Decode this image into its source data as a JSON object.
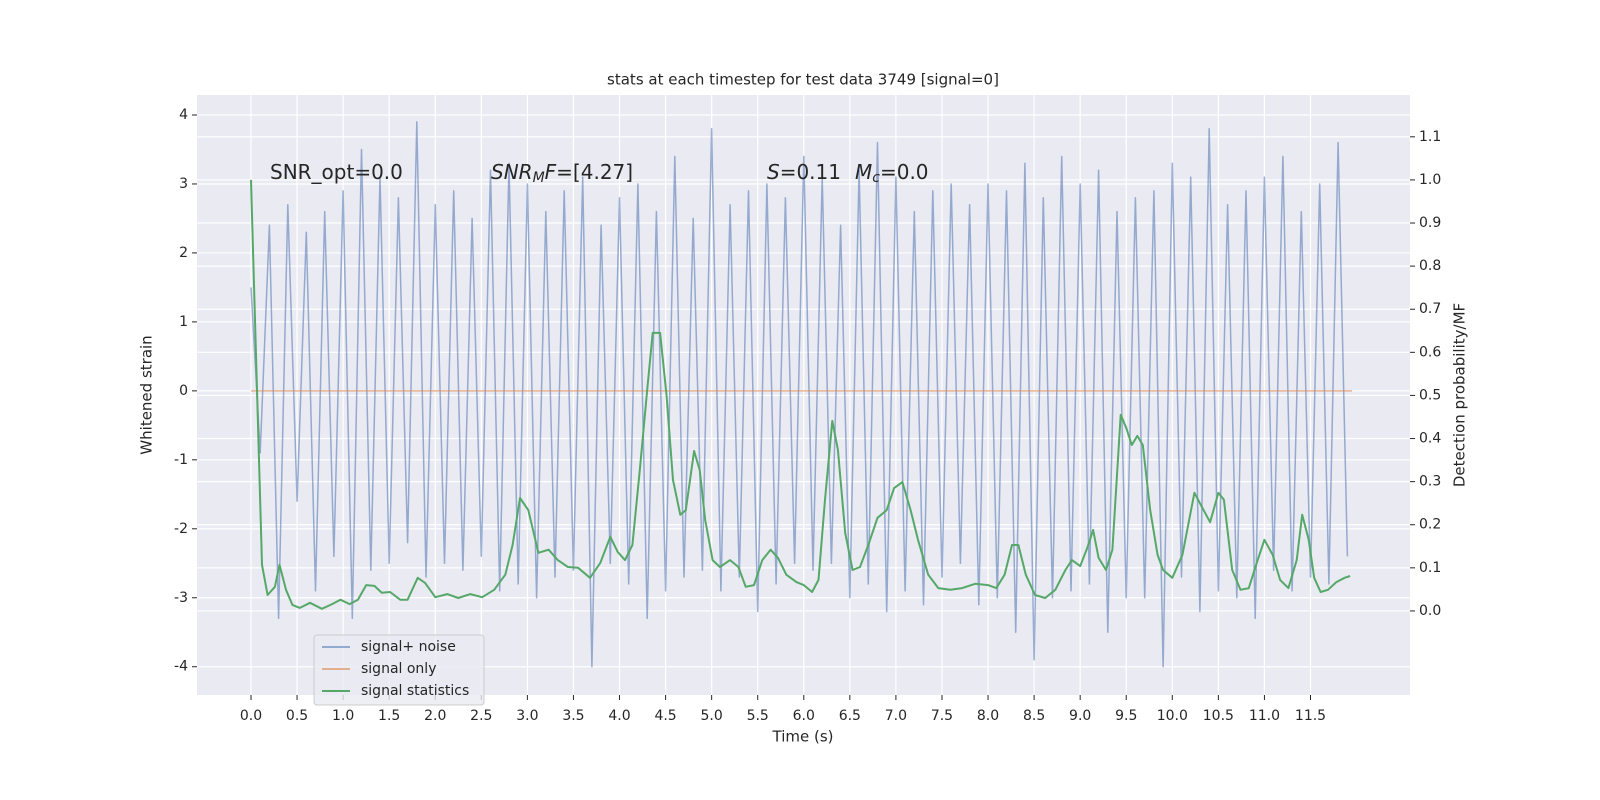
{
  "chart_data": {
    "type": "line",
    "title": "stats at each timestep for test data 3749 [signal=0]",
    "x_label": "Time (s)",
    "y_label": "Whitened strain",
    "y2_label": "Detection probability/MF",
    "xlim": [
      -0.586,
      12.58
    ],
    "ylim": [
      -4.41,
      4.29
    ],
    "y2lim": [
      -0.195,
      1.197
    ],
    "xticks": [
      {
        "value": 0,
        "label": "0.0"
      },
      {
        "value": 0.5,
        "label": "0.5"
      },
      {
        "value": 1,
        "label": "1.0"
      },
      {
        "value": 1.5,
        "label": "1.5"
      },
      {
        "value": 2,
        "label": "2.0"
      },
      {
        "value": 2.5,
        "label": "2.5"
      },
      {
        "value": 3,
        "label": "3.0"
      },
      {
        "value": 3.5,
        "label": "3.5"
      },
      {
        "value": 4,
        "label": "4.0"
      },
      {
        "value": 4.5,
        "label": "4.5"
      },
      {
        "value": 5,
        "label": "5.0"
      },
      {
        "value": 5.5,
        "label": "5.5"
      },
      {
        "value": 6,
        "label": "6.0"
      },
      {
        "value": 6.5,
        "label": "6.5"
      },
      {
        "value": 7,
        "label": "7.0"
      },
      {
        "value": 7.5,
        "label": "7.5"
      },
      {
        "value": 8,
        "label": "8.0"
      },
      {
        "value": 8.5,
        "label": "8.5"
      },
      {
        "value": 9,
        "label": "9.0"
      },
      {
        "value": 9.5,
        "label": "9.5"
      },
      {
        "value": 10,
        "label": "10.0"
      },
      {
        "value": 10.5,
        "label": "10.5"
      },
      {
        "value": 11,
        "label": "11.0"
      },
      {
        "value": 11.5,
        "label": "11.5"
      }
    ],
    "yticks": [
      -4,
      -3,
      -2,
      -1,
      0,
      1,
      2,
      3,
      4
    ],
    "y2ticks": [
      {
        "value": 0,
        "label": "0.0"
      },
      {
        "value": 0.1,
        "label": "0.1"
      },
      {
        "value": 0.2,
        "label": "0.2"
      },
      {
        "value": 0.3,
        "label": "0.3"
      },
      {
        "value": 0.4,
        "label": "0.4"
      },
      {
        "value": 0.5,
        "label": "0.5"
      },
      {
        "value": 0.6,
        "label": "0.6"
      },
      {
        "value": 0.7,
        "label": "0.7"
      },
      {
        "value": 0.8,
        "label": "0.8"
      },
      {
        "value": 0.9,
        "label": "0.9"
      },
      {
        "value": 1,
        "label": "1.0"
      },
      {
        "value": 1.1,
        "label": "1.1"
      }
    ],
    "grid": true,
    "legend": "lower left",
    "annotations": [
      [
        {
          "text": "SNR_opt=0.0",
          "style": "normal"
        }
      ],
      [
        {
          "text": "SNR",
          "style": "italic"
        },
        {
          "text": "M",
          "style": "sub"
        },
        {
          "text": "F",
          "style": "italic"
        },
        {
          "text": "=[4.27]",
          "style": "normal"
        }
      ],
      [
        {
          "text": "S",
          "style": "italic"
        },
        {
          "text": "=0.11",
          "style": "normal"
        },
        {
          "text": "M",
          "style": "italic-gap"
        },
        {
          "text": "c",
          "style": "sub"
        },
        {
          "text": "=0.0",
          "style": "normal"
        }
      ]
    ],
    "series": [
      {
        "name": "signal+ noise",
        "color": "#4c72b0",
        "opacity": 0.55,
        "x": [
          0,
          0.1,
          0.2,
          0.3,
          0.4,
          0.5,
          0.6,
          0.7,
          0.8,
          0.9,
          1,
          1.1,
          1.2,
          1.3,
          1.4,
          1.5,
          1.6,
          1.7,
          1.8,
          1.9,
          2,
          2.1,
          2.2,
          2.3,
          2.4,
          2.5,
          2.6,
          2.7,
          2.8,
          2.9,
          3,
          3.1,
          3.2,
          3.3,
          3.4,
          3.5,
          3.6,
          3.7,
          3.8,
          3.9,
          4,
          4.1,
          4.2,
          4.3,
          4.4,
          4.5,
          4.6,
          4.7,
          4.8,
          4.9,
          5,
          5.1,
          5.2,
          5.3,
          5.4,
          5.5,
          5.6,
          5.7,
          5.8,
          5.9,
          6,
          6.1,
          6.2,
          6.3,
          6.4,
          6.5,
          6.6,
          6.7,
          6.8,
          6.9,
          7,
          7.1,
          7.2,
          7.3,
          7.4,
          7.5,
          7.6,
          7.7,
          7.8,
          7.9,
          8,
          8.1,
          8.2,
          8.3,
          8.4,
          8.5,
          8.6,
          8.7,
          8.8,
          8.9,
          9,
          9.1,
          9.2,
          9.3,
          9.4,
          9.5,
          9.6,
          9.7,
          9.8,
          9.9,
          10,
          10.1,
          10.2,
          10.3,
          10.4,
          10.5,
          10.6,
          10.7,
          10.8,
          10.9,
          11,
          11.1,
          11.2,
          11.3,
          11.4,
          11.5,
          11.6,
          11.7,
          11.8,
          11.9
        ],
        "values": [
          1.5,
          -0.9,
          2.4,
          -3.3,
          2.7,
          -1.6,
          2.3,
          -2.9,
          2.6,
          -2.4,
          2.9,
          -3.3,
          3.5,
          -2.6,
          3.1,
          -2.5,
          2.8,
          -2.2,
          3.9,
          -2.7,
          2.7,
          -2.5,
          2.9,
          -2.6,
          2.5,
          -2.4,
          3.2,
          -2.9,
          3.3,
          -2.8,
          3.0,
          -3.0,
          2.6,
          -2.7,
          2.9,
          -2.6,
          3.1,
          -4.0,
          2.4,
          -2.5,
          2.8,
          -2.8,
          3.0,
          -3.3,
          2.6,
          -2.9,
          3.4,
          -2.7,
          2.5,
          -2.6,
          3.8,
          -2.9,
          2.7,
          -2.7,
          2.9,
          -3.2,
          3.0,
          -2.8,
          2.8,
          -2.5,
          3.4,
          -2.6,
          3.1,
          -2.5,
          2.4,
          -3.0,
          3.2,
          -2.8,
          3.6,
          -3.2,
          3.1,
          -2.9,
          2.6,
          -3.1,
          2.9,
          -2.7,
          3.0,
          -2.5,
          2.7,
          -3.1,
          3.0,
          -3.0,
          2.9,
          -3.5,
          3.3,
          -3.9,
          2.8,
          -3.0,
          3.4,
          -2.9,
          3.0,
          -2.8,
          3.2,
          -3.5,
          2.6,
          -3.0,
          2.8,
          -3.0,
          2.9,
          -4.0,
          3.3,
          -2.7,
          3.1,
          -3.2,
          3.8,
          -2.9,
          2.7,
          -3.0,
          2.9,
          -3.3,
          3.1,
          -2.6,
          3.4,
          -2.9,
          2.6,
          -2.7,
          3.0,
          -2.8,
          3.6,
          -2.4
        ]
      },
      {
        "name": "signal only",
        "color": "#dd8452",
        "opacity": 0.6,
        "x": [
          0,
          11.95
        ],
        "values": [
          0,
          0
        ]
      },
      {
        "name": "signal statistics",
        "color": "#55a868",
        "opacity": 1,
        "axis": "y2",
        "x": [
          0,
          0.12,
          0.18,
          0.26,
          0.31,
          0.38,
          0.45,
          0.53,
          0.64,
          0.77,
          0.88,
          0.97,
          1.07,
          1.16,
          1.25,
          1.34,
          1.42,
          1.51,
          1.62,
          1.7,
          1.81,
          1.89,
          2,
          2.13,
          2.25,
          2.38,
          2.51,
          2.64,
          2.76,
          2.84,
          2.92,
          3.01,
          3.12,
          3.23,
          3.33,
          3.44,
          3.55,
          3.68,
          3.79,
          3.9,
          3.98,
          4.06,
          4.14,
          4.22,
          4.3,
          4.36,
          4.44,
          4.51,
          4.58,
          4.66,
          4.72,
          4.81,
          4.87,
          4.93,
          5.01,
          5.09,
          5.2,
          5.29,
          5.37,
          5.46,
          5.55,
          5.64,
          5.72,
          5.81,
          5.92,
          6,
          6.09,
          6.16,
          6.23,
          6.31,
          6.37,
          6.45,
          6.53,
          6.61,
          6.7,
          6.8,
          6.9,
          6.98,
          7.07,
          7.16,
          7.24,
          7.35,
          7.46,
          7.59,
          7.72,
          7.86,
          8,
          8.09,
          8.18,
          8.26,
          8.33,
          8.41,
          8.51,
          8.62,
          8.73,
          8.84,
          8.91,
          9,
          9.08,
          9.14,
          9.2,
          9.28,
          9.35,
          9.44,
          9.5,
          9.56,
          9.62,
          9.68,
          9.76,
          9.84,
          9.9,
          10,
          10.11,
          10.24,
          10.35,
          10.41,
          10.5,
          10.56,
          10.65,
          10.74,
          10.83,
          10.91,
          11,
          11.09,
          11.17,
          11.26,
          11.35,
          11.41,
          11.48,
          11.54,
          11.61,
          11.69,
          11.78,
          11.87,
          11.93
        ],
        "values": [
          1.0,
          0.107,
          0.037,
          0.056,
          0.107,
          0.049,
          0.014,
          0.007,
          0.019,
          0.005,
          0.016,
          0.026,
          0.016,
          0.026,
          0.06,
          0.058,
          0.042,
          0.044,
          0.026,
          0.026,
          0.077,
          0.065,
          0.032,
          0.039,
          0.03,
          0.039,
          0.032,
          0.049,
          0.084,
          0.153,
          0.262,
          0.234,
          0.135,
          0.142,
          0.118,
          0.102,
          0.1,
          0.077,
          0.111,
          0.172,
          0.137,
          0.118,
          0.153,
          0.327,
          0.513,
          0.645,
          0.645,
          0.501,
          0.304,
          0.223,
          0.234,
          0.371,
          0.327,
          0.211,
          0.118,
          0.102,
          0.118,
          0.102,
          0.056,
          0.06,
          0.118,
          0.142,
          0.123,
          0.084,
          0.067,
          0.06,
          0.044,
          0.072,
          0.258,
          0.441,
          0.374,
          0.181,
          0.095,
          0.102,
          0.153,
          0.216,
          0.234,
          0.285,
          0.299,
          0.234,
          0.165,
          0.084,
          0.053,
          0.049,
          0.053,
          0.063,
          0.06,
          0.053,
          0.084,
          0.153,
          0.153,
          0.084,
          0.037,
          0.03,
          0.049,
          0.095,
          0.118,
          0.104,
          0.148,
          0.188,
          0.123,
          0.095,
          0.142,
          0.455,
          0.425,
          0.385,
          0.406,
          0.385,
          0.234,
          0.13,
          0.095,
          0.077,
          0.13,
          0.274,
          0.23,
          0.206,
          0.274,
          0.258,
          0.095,
          0.049,
          0.053,
          0.107,
          0.165,
          0.13,
          0.072,
          0.053,
          0.118,
          0.223,
          0.165,
          0.077,
          0.044,
          0.049,
          0.067,
          0.077,
          0.081
        ]
      }
    ]
  }
}
